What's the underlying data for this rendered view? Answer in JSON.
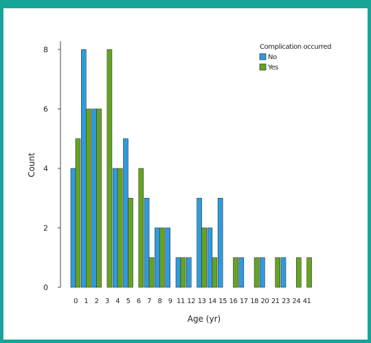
{
  "colors": {
    "frame": "#16a597",
    "no": "#2f9bdc",
    "yes": "#64a422"
  },
  "chart_data": {
    "type": "bar",
    "xlabel": "Age (yr)",
    "ylabel": "Count",
    "ylim": [
      0,
      8
    ],
    "yticks": [
      0,
      2,
      4,
      6,
      8
    ],
    "legend": {
      "title": "Complication occurred",
      "position": "top-right"
    },
    "categories": [
      "0",
      "1",
      "2",
      "3",
      "4",
      "5",
      "6",
      "7",
      "8",
      "9",
      "11",
      "12",
      "13",
      "14",
      "15",
      "16",
      "17",
      "18",
      "20",
      "21",
      "23",
      "24",
      "41"
    ],
    "series": [
      {
        "name": "No",
        "values": [
          4,
          8,
          6,
          0,
          4,
          5,
          0,
          3,
          2,
          2,
          1,
          1,
          3,
          2,
          3,
          0,
          1,
          0,
          1,
          0,
          1,
          0,
          0
        ]
      },
      {
        "name": "Yes",
        "values": [
          5,
          6,
          6,
          8,
          4,
          3,
          4,
          1,
          2,
          0,
          1,
          0,
          2,
          1,
          0,
          1,
          0,
          1,
          0,
          1,
          0,
          1,
          1
        ]
      }
    ]
  }
}
